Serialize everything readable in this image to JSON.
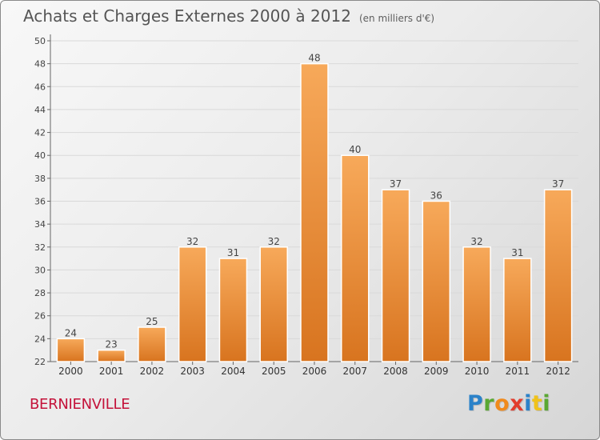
{
  "title": "Achats et Charges Externes 2000 à 2012",
  "subtitle": "(en milliers d'€)",
  "town": "BERNIENVILLE",
  "logo": {
    "p": "P",
    "r": "r",
    "o": "o",
    "x": "x",
    "i": "i",
    "t": "t",
    "i2": "i"
  },
  "colors": {
    "bar_light": "#f7a95a",
    "bar_dark": "#d8741f",
    "title": "#555555",
    "town": "#c4123a"
  },
  "chart_data": {
    "type": "bar",
    "categories": [
      "2000",
      "2001",
      "2002",
      "2003",
      "2004",
      "2005",
      "2006",
      "2007",
      "2008",
      "2009",
      "2010",
      "2011",
      "2012"
    ],
    "values": [
      24,
      23,
      25,
      32,
      31,
      32,
      48,
      40,
      37,
      36,
      32,
      31,
      37
    ],
    "ylim": [
      22,
      50
    ],
    "yticks": [
      22,
      24,
      26,
      28,
      30,
      32,
      34,
      36,
      38,
      40,
      42,
      44,
      46,
      48,
      50
    ],
    "grid": true,
    "xlabel": "",
    "ylabel": ""
  }
}
